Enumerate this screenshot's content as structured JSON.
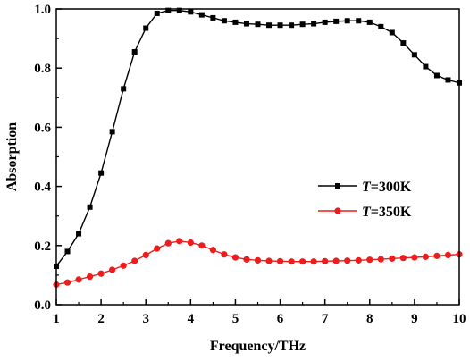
{
  "chart_data": {
    "type": "line",
    "xlabel": "Frequency/THz",
    "ylabel": "Absorption",
    "xlim": [
      1,
      10
    ],
    "ylim": [
      0.0,
      1.0
    ],
    "x_ticks": [
      "1",
      "2",
      "3",
      "4",
      "5",
      "6",
      "7",
      "8",
      "9",
      "10"
    ],
    "y_ticks": [
      "0.0",
      "0.2",
      "0.4",
      "0.6",
      "0.8",
      "1.0"
    ],
    "grid": false,
    "legend_position": "center-right",
    "x": [
      1.0,
      1.25,
      1.5,
      1.75,
      2.0,
      2.25,
      2.5,
      2.75,
      3.0,
      3.25,
      3.5,
      3.75,
      4.0,
      4.25,
      4.5,
      4.75,
      5.0,
      5.25,
      5.5,
      5.75,
      6.0,
      6.25,
      6.5,
      6.75,
      7.0,
      7.25,
      7.5,
      7.75,
      8.0,
      8.25,
      8.5,
      8.75,
      9.0,
      9.25,
      9.5,
      9.75,
      10.0
    ],
    "series": [
      {
        "name": "T=300K",
        "legend_var": "T",
        "legend_rest": "=300K",
        "color": "#000000",
        "marker": "square",
        "values": [
          0.13,
          0.18,
          0.24,
          0.33,
          0.445,
          0.585,
          0.73,
          0.855,
          0.935,
          0.985,
          0.995,
          0.995,
          0.99,
          0.98,
          0.97,
          0.96,
          0.955,
          0.95,
          0.948,
          0.945,
          0.945,
          0.945,
          0.948,
          0.95,
          0.955,
          0.958,
          0.96,
          0.96,
          0.955,
          0.94,
          0.92,
          0.885,
          0.845,
          0.805,
          0.775,
          0.76,
          0.75
        ]
      },
      {
        "name": "T=350K",
        "legend_var": "T",
        "legend_rest": "=350K",
        "color": "#ee1c1c",
        "marker": "circle",
        "values": [
          0.068,
          0.075,
          0.085,
          0.095,
          0.105,
          0.118,
          0.132,
          0.148,
          0.168,
          0.19,
          0.208,
          0.215,
          0.21,
          0.2,
          0.185,
          0.17,
          0.16,
          0.153,
          0.15,
          0.148,
          0.147,
          0.146,
          0.146,
          0.146,
          0.147,
          0.148,
          0.149,
          0.15,
          0.152,
          0.154,
          0.156,
          0.158,
          0.16,
          0.162,
          0.165,
          0.168,
          0.17
        ]
      }
    ]
  }
}
